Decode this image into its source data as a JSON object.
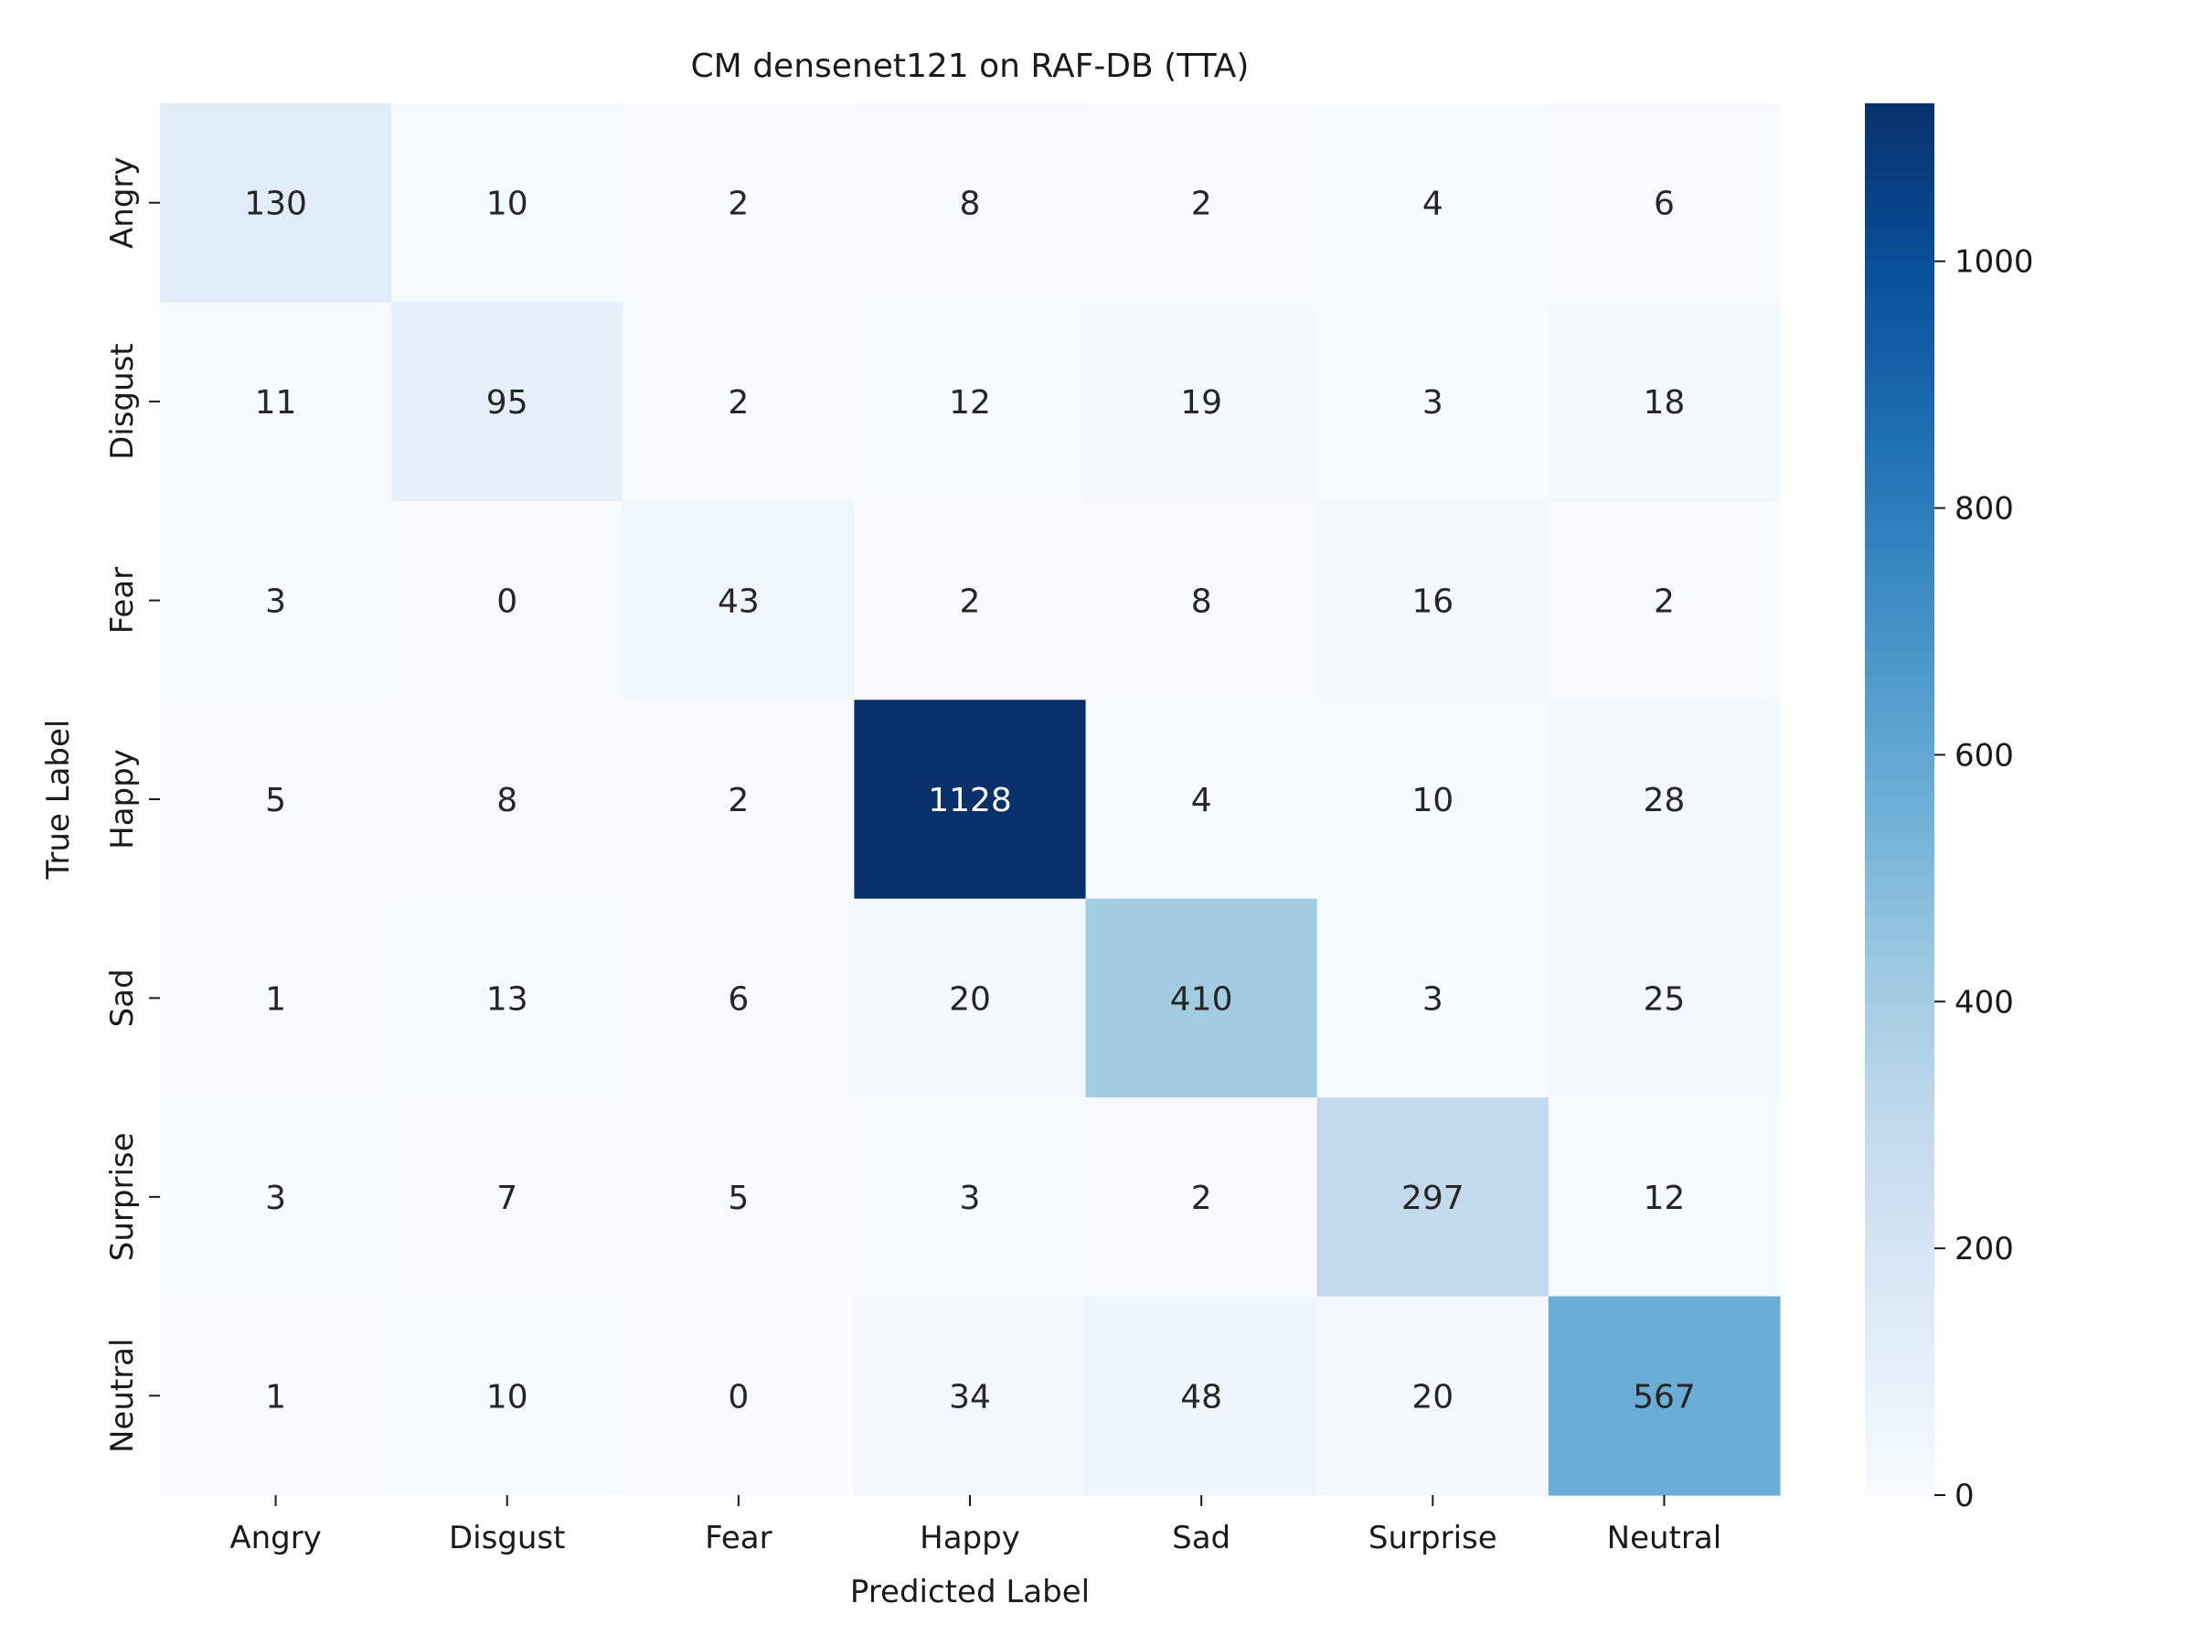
{
  "chart_data": {
    "type": "heatmap",
    "title": "CM densenet121 on RAF-DB (TTA)",
    "xlabel": "Predicted Label",
    "ylabel": "True Label",
    "x_categories": [
      "Angry",
      "Disgust",
      "Fear",
      "Happy",
      "Sad",
      "Surprise",
      "Neutral"
    ],
    "y_categories": [
      "Angry",
      "Disgust",
      "Fear",
      "Happy",
      "Sad",
      "Surprise",
      "Neutral"
    ],
    "values": [
      [
        130,
        10,
        2,
        8,
        2,
        4,
        6
      ],
      [
        11,
        95,
        2,
        12,
        19,
        3,
        18
      ],
      [
        3,
        0,
        43,
        2,
        8,
        16,
        2
      ],
      [
        5,
        8,
        2,
        1128,
        4,
        10,
        28
      ],
      [
        1,
        13,
        6,
        20,
        410,
        3,
        25
      ],
      [
        3,
        7,
        5,
        3,
        2,
        297,
        12
      ],
      [
        1,
        10,
        0,
        34,
        48,
        20,
        567
      ]
    ],
    "colormap": "Blues",
    "colorbar": {
      "range": [
        0,
        1128
      ],
      "ticks": [
        0,
        200,
        400,
        600,
        800,
        1000
      ]
    }
  }
}
